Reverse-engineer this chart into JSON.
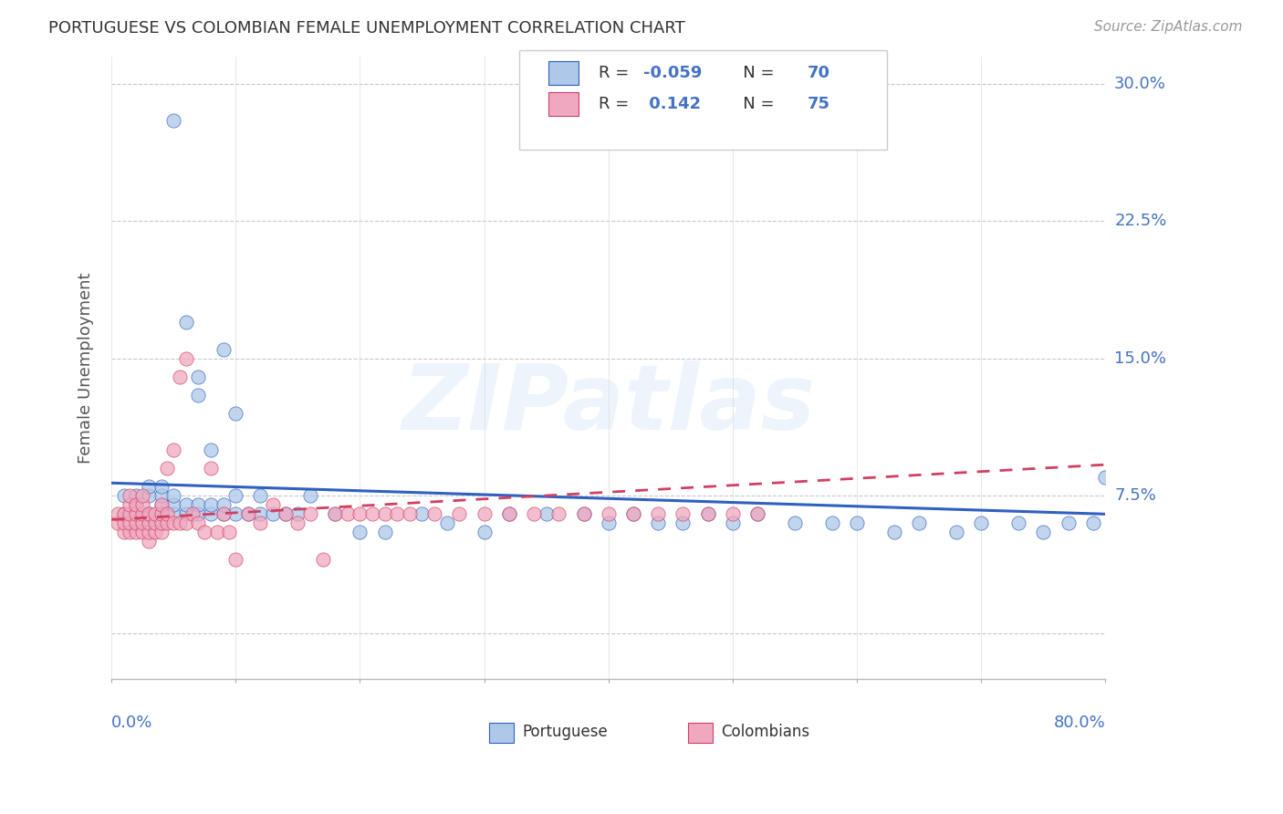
{
  "title": "PORTUGUESE VS COLOMBIAN FEMALE UNEMPLOYMENT CORRELATION CHART",
  "source": "Source: ZipAtlas.com",
  "ylabel": "Female Unemployment",
  "ytick_values": [
    0.0,
    0.075,
    0.15,
    0.225,
    0.3
  ],
  "ytick_labels": [
    "",
    "7.5%",
    "15.0%",
    "22.5%",
    "30.0%"
  ],
  "xlim": [
    0.0,
    0.8
  ],
  "ylim": [
    -0.025,
    0.315
  ],
  "watermark": "ZIPatlas",
  "portuguese_color": "#adc8e8",
  "colombians_color": "#f0a8c0",
  "trend_portuguese_color": "#3060c0",
  "trend_colombians_color": "#d04060",
  "portuguese_x": [
    0.01,
    0.01,
    0.02,
    0.02,
    0.02,
    0.02,
    0.03,
    0.03,
    0.03,
    0.03,
    0.04,
    0.04,
    0.04,
    0.04,
    0.04,
    0.05,
    0.05,
    0.05,
    0.05,
    0.06,
    0.06,
    0.06,
    0.07,
    0.07,
    0.07,
    0.07,
    0.08,
    0.08,
    0.08,
    0.09,
    0.09,
    0.09,
    0.1,
    0.1,
    0.1,
    0.11,
    0.12,
    0.12,
    0.13,
    0.14,
    0.15,
    0.16,
    0.18,
    0.2,
    0.22,
    0.25,
    0.27,
    0.3,
    0.32,
    0.35,
    0.38,
    0.4,
    0.42,
    0.44,
    0.46,
    0.48,
    0.5,
    0.52,
    0.55,
    0.58,
    0.6,
    0.63,
    0.65,
    0.68,
    0.7,
    0.73,
    0.75,
    0.77,
    0.79,
    0.8
  ],
  "portuguese_y": [
    0.065,
    0.075,
    0.06,
    0.065,
    0.07,
    0.075,
    0.06,
    0.065,
    0.075,
    0.08,
    0.06,
    0.065,
    0.07,
    0.075,
    0.08,
    0.065,
    0.07,
    0.075,
    0.28,
    0.065,
    0.07,
    0.17,
    0.065,
    0.07,
    0.13,
    0.14,
    0.065,
    0.07,
    0.1,
    0.065,
    0.07,
    0.155,
    0.065,
    0.075,
    0.12,
    0.065,
    0.065,
    0.075,
    0.065,
    0.065,
    0.065,
    0.075,
    0.065,
    0.055,
    0.055,
    0.065,
    0.06,
    0.055,
    0.065,
    0.065,
    0.065,
    0.06,
    0.065,
    0.06,
    0.06,
    0.065,
    0.06,
    0.065,
    0.06,
    0.06,
    0.06,
    0.055,
    0.06,
    0.055,
    0.06,
    0.06,
    0.055,
    0.06,
    0.06,
    0.085
  ],
  "colombians_x": [
    0.005,
    0.005,
    0.01,
    0.01,
    0.01,
    0.015,
    0.015,
    0.015,
    0.015,
    0.015,
    0.02,
    0.02,
    0.02,
    0.02,
    0.025,
    0.025,
    0.025,
    0.025,
    0.025,
    0.03,
    0.03,
    0.03,
    0.03,
    0.035,
    0.035,
    0.035,
    0.04,
    0.04,
    0.04,
    0.04,
    0.045,
    0.045,
    0.045,
    0.05,
    0.05,
    0.055,
    0.055,
    0.06,
    0.06,
    0.065,
    0.07,
    0.075,
    0.08,
    0.085,
    0.09,
    0.095,
    0.1,
    0.11,
    0.12,
    0.13,
    0.14,
    0.15,
    0.16,
    0.17,
    0.18,
    0.19,
    0.2,
    0.21,
    0.22,
    0.23,
    0.24,
    0.26,
    0.28,
    0.3,
    0.32,
    0.34,
    0.36,
    0.38,
    0.4,
    0.42,
    0.44,
    0.46,
    0.48,
    0.5,
    0.52
  ],
  "colombians_y": [
    0.06,
    0.065,
    0.055,
    0.06,
    0.065,
    0.055,
    0.06,
    0.065,
    0.07,
    0.075,
    0.055,
    0.06,
    0.065,
    0.07,
    0.055,
    0.06,
    0.065,
    0.07,
    0.075,
    0.05,
    0.055,
    0.06,
    0.065,
    0.055,
    0.06,
    0.065,
    0.055,
    0.06,
    0.065,
    0.07,
    0.06,
    0.065,
    0.09,
    0.06,
    0.1,
    0.06,
    0.14,
    0.06,
    0.15,
    0.065,
    0.06,
    0.055,
    0.09,
    0.055,
    0.065,
    0.055,
    0.04,
    0.065,
    0.06,
    0.07,
    0.065,
    0.06,
    0.065,
    0.04,
    0.065,
    0.065,
    0.065,
    0.065,
    0.065,
    0.065,
    0.065,
    0.065,
    0.065,
    0.065,
    0.065,
    0.065,
    0.065,
    0.065,
    0.065,
    0.065,
    0.065,
    0.065,
    0.065,
    0.065,
    0.065
  ],
  "trend_p_x0": 0.0,
  "trend_p_y0": 0.082,
  "trend_p_x1": 0.8,
  "trend_p_y1": 0.065,
  "trend_c_x0": 0.0,
  "trend_c_y0": 0.062,
  "trend_c_x1": 0.8,
  "trend_c_y1": 0.092
}
